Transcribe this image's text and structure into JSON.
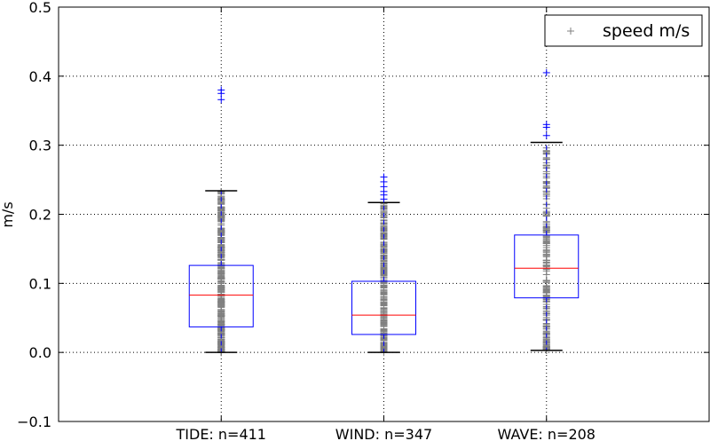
{
  "chart_data": {
    "type": "box",
    "title": "",
    "xlabel": "",
    "ylabel": "m/s",
    "ylim": [
      -0.1,
      0.5
    ],
    "yticks": [
      -0.1,
      0.0,
      0.1,
      0.2,
      0.3,
      0.4,
      0.5
    ],
    "ytick_labels": [
      "−0.1",
      "0.0",
      "0.1",
      "0.2",
      "0.3",
      "0.4",
      "0.5"
    ],
    "grid": true,
    "legend": {
      "placement": "top-right",
      "entries": [
        {
          "label": "speed m/s",
          "marker": "+",
          "color": "#808080"
        }
      ]
    },
    "colors": {
      "box": "#0000ff",
      "median": "#ff0000",
      "whisker": "#000000",
      "flier": "#0000ff",
      "points": "#808080",
      "grid": "#000000"
    },
    "categories": [
      "TIDE: n=411",
      "WIND: n=347",
      "WAVE: n=208"
    ],
    "boxes": [
      {
        "name": "TIDE",
        "n": 411,
        "whisker_low": 0.0,
        "q1": 0.037,
        "median": 0.083,
        "q3": 0.126,
        "whisker_high": 0.234,
        "fliers": [
          0.366,
          0.375,
          0.38
        ],
        "points_range": [
          0.0,
          0.234
        ]
      },
      {
        "name": "WIND",
        "n": 347,
        "whisker_low": 0.0,
        "q1": 0.026,
        "median": 0.054,
        "q3": 0.103,
        "whisker_high": 0.217,
        "fliers": [
          0.222,
          0.228,
          0.233,
          0.24,
          0.247,
          0.254
        ],
        "points_range": [
          0.0,
          0.217
        ]
      },
      {
        "name": "WAVE",
        "n": 208,
        "whisker_low": 0.003,
        "q1": 0.079,
        "median": 0.122,
        "q3": 0.17,
        "whisker_high": 0.304,
        "fliers": [
          0.314,
          0.326,
          0.33,
          0.405
        ],
        "points_range": [
          0.003,
          0.304
        ]
      }
    ]
  }
}
